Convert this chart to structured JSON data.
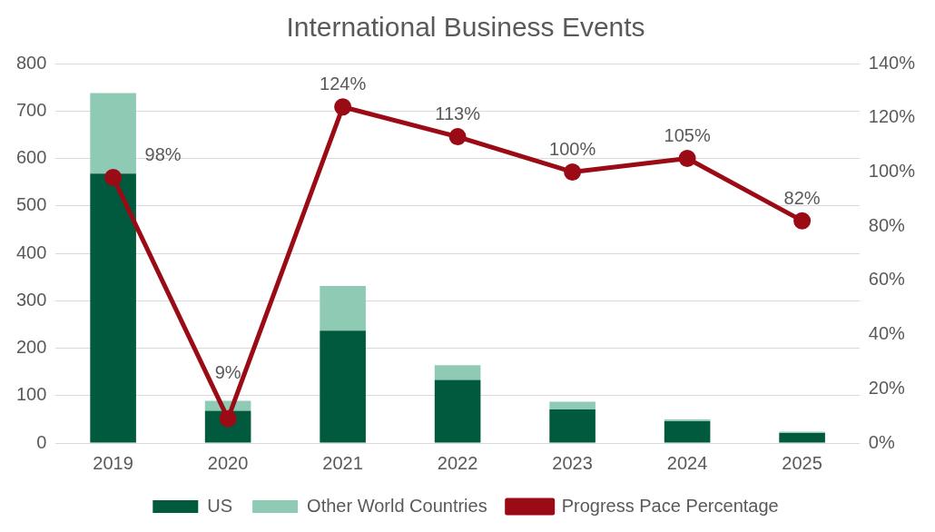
{
  "chart_data": {
    "type": "bar",
    "title": "International Business Events",
    "categories": [
      "2019",
      "2020",
      "2021",
      "2022",
      "2023",
      "2024",
      "2025"
    ],
    "stacked": true,
    "series": [
      {
        "name": "US",
        "color": "#025a3e",
        "values": [
          568,
          68,
          237,
          133,
          71,
          46,
          21
        ]
      },
      {
        "name": "Other World Countries",
        "color": "#8fcab4",
        "values": [
          170,
          21,
          94,
          31,
          16,
          4,
          3
        ]
      },
      {
        "name": "Progress Pace Percentage",
        "type": "line",
        "axis": "y2",
        "color": "#9b0b16",
        "marker": "circle",
        "values": [
          98,
          9,
          124,
          113,
          100,
          105,
          82
        ],
        "value_labels": [
          "98%",
          "9%",
          "124%",
          "113%",
          "100%",
          "105%",
          "82%"
        ]
      }
    ],
    "ylim": [
      0,
      800
    ],
    "yticks": [
      0,
      100,
      200,
      300,
      400,
      500,
      600,
      700,
      800
    ],
    "y2lim": [
      0,
      140
    ],
    "y2ticks": [
      {
        "value": 0,
        "label": "0%"
      },
      {
        "value": 20,
        "label": "20%"
      },
      {
        "value": 40,
        "label": "40%"
      },
      {
        "value": 60,
        "label": "60%"
      },
      {
        "value": 80,
        "label": "80%"
      },
      {
        "value": 100,
        "label": "100%"
      },
      {
        "value": 120,
        "label": "120%"
      },
      {
        "value": 140,
        "label": "140%"
      }
    ],
    "grid": "y",
    "legend": "bottom"
  }
}
